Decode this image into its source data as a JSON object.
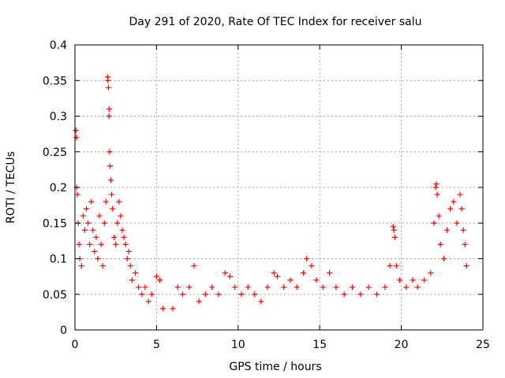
{
  "chart_data": {
    "type": "scatter",
    "title": "Day 291 of 2020, Rate Of TEC Index for receiver salu",
    "xlabel": "GPS time / hours",
    "ylabel": "ROTI / TECUs",
    "xlim": [
      0,
      25
    ],
    "ylim": [
      0,
      0.4
    ],
    "xticks": [
      0,
      5,
      10,
      15,
      20,
      25
    ],
    "xtick_labels": [
      "0",
      "5",
      "10",
      "15",
      "20",
      "25"
    ],
    "yticks": [
      0,
      0.05,
      0.1,
      0.15,
      0.2,
      0.25,
      0.3,
      0.35,
      0.4
    ],
    "ytick_labels": [
      "0",
      "0.05",
      "0.1",
      "0.15",
      "0.2",
      "0.25",
      "0.3",
      "0.35",
      "0.4"
    ],
    "grid": true,
    "marker": "+",
    "color": "#ff0000",
    "series": [
      {
        "name": "ROTI",
        "points": [
          [
            0.05,
            0.28
          ],
          [
            0.08,
            0.27
          ],
          [
            0.1,
            0.2
          ],
          [
            0.15,
            0.19
          ],
          [
            0.2,
            0.15
          ],
          [
            0.25,
            0.12
          ],
          [
            0.3,
            0.1
          ],
          [
            0.4,
            0.09
          ],
          [
            0.5,
            0.16
          ],
          [
            0.6,
            0.14
          ],
          [
            0.7,
            0.17
          ],
          [
            0.8,
            0.15
          ],
          [
            0.9,
            0.12
          ],
          [
            1.0,
            0.18
          ],
          [
            1.1,
            0.14
          ],
          [
            1.2,
            0.11
          ],
          [
            1.3,
            0.13
          ],
          [
            1.4,
            0.1
          ],
          [
            1.5,
            0.16
          ],
          [
            1.6,
            0.12
          ],
          [
            1.7,
            0.09
          ],
          [
            1.8,
            0.15
          ],
          [
            1.9,
            0.18
          ],
          [
            2.0,
            0.355
          ],
          [
            2.02,
            0.35
          ],
          [
            2.05,
            0.34
          ],
          [
            2.08,
            0.3
          ],
          [
            2.1,
            0.31
          ],
          [
            2.12,
            0.25
          ],
          [
            2.15,
            0.23
          ],
          [
            2.2,
            0.21
          ],
          [
            2.25,
            0.19
          ],
          [
            2.3,
            0.17
          ],
          [
            2.4,
            0.13
          ],
          [
            2.5,
            0.12
          ],
          [
            2.6,
            0.15
          ],
          [
            2.7,
            0.18
          ],
          [
            2.8,
            0.16
          ],
          [
            2.9,
            0.14
          ],
          [
            3.0,
            0.13
          ],
          [
            3.1,
            0.12
          ],
          [
            3.2,
            0.1
          ],
          [
            3.3,
            0.11
          ],
          [
            3.4,
            0.09
          ],
          [
            3.5,
            0.07
          ],
          [
            3.7,
            0.08
          ],
          [
            3.9,
            0.06
          ],
          [
            4.1,
            0.05
          ],
          [
            4.3,
            0.06
          ],
          [
            4.5,
            0.04
          ],
          [
            4.7,
            0.05
          ],
          [
            5.0,
            0.075
          ],
          [
            5.2,
            0.07
          ],
          [
            5.4,
            0.03
          ],
          [
            6.0,
            0.03
          ],
          [
            6.3,
            0.06
          ],
          [
            6.6,
            0.05
          ],
          [
            7.0,
            0.06
          ],
          [
            7.3,
            0.09
          ],
          [
            7.6,
            0.04
          ],
          [
            8.0,
            0.05
          ],
          [
            8.4,
            0.06
          ],
          [
            8.8,
            0.05
          ],
          [
            9.2,
            0.08
          ],
          [
            9.5,
            0.075
          ],
          [
            9.8,
            0.06
          ],
          [
            10.2,
            0.05
          ],
          [
            10.6,
            0.06
          ],
          [
            11.0,
            0.05
          ],
          [
            11.4,
            0.04
          ],
          [
            11.8,
            0.06
          ],
          [
            12.2,
            0.08
          ],
          [
            12.4,
            0.075
          ],
          [
            12.8,
            0.06
          ],
          [
            13.2,
            0.07
          ],
          [
            13.6,
            0.06
          ],
          [
            14.0,
            0.08
          ],
          [
            14.2,
            0.1
          ],
          [
            14.5,
            0.09
          ],
          [
            14.8,
            0.07
          ],
          [
            15.2,
            0.06
          ],
          [
            15.6,
            0.08
          ],
          [
            16.0,
            0.06
          ],
          [
            16.5,
            0.05
          ],
          [
            17.0,
            0.06
          ],
          [
            17.5,
            0.05
          ],
          [
            18.0,
            0.06
          ],
          [
            18.5,
            0.05
          ],
          [
            19.0,
            0.06
          ],
          [
            19.3,
            0.09
          ],
          [
            19.5,
            0.145
          ],
          [
            19.55,
            0.14
          ],
          [
            19.6,
            0.13
          ],
          [
            19.7,
            0.09
          ],
          [
            19.9,
            0.07
          ],
          [
            20.3,
            0.06
          ],
          [
            20.7,
            0.07
          ],
          [
            21.0,
            0.06
          ],
          [
            21.4,
            0.07
          ],
          [
            21.8,
            0.08
          ],
          [
            22.0,
            0.15
          ],
          [
            22.1,
            0.2
          ],
          [
            22.15,
            0.205
          ],
          [
            22.2,
            0.19
          ],
          [
            22.3,
            0.16
          ],
          [
            22.4,
            0.12
          ],
          [
            22.6,
            0.1
          ],
          [
            22.8,
            0.14
          ],
          [
            23.0,
            0.17
          ],
          [
            23.2,
            0.18
          ],
          [
            23.4,
            0.15
          ],
          [
            23.6,
            0.19
          ],
          [
            23.7,
            0.17
          ],
          [
            23.8,
            0.14
          ],
          [
            23.9,
            0.12
          ],
          [
            24.0,
            0.09
          ]
        ]
      }
    ]
  }
}
